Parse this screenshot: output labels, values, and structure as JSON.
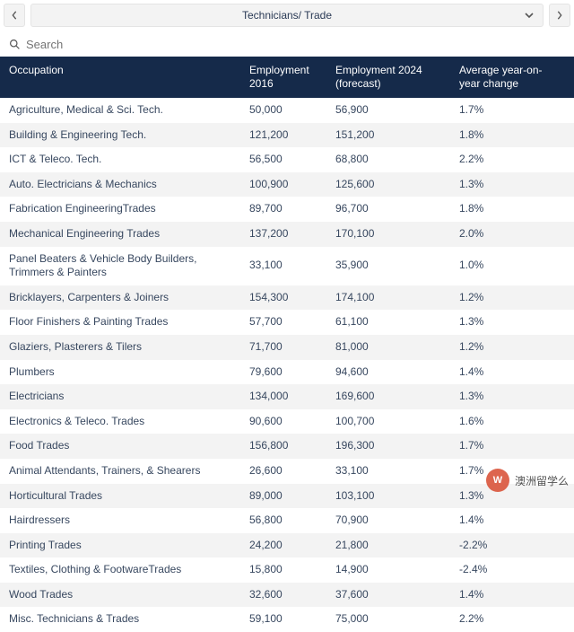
{
  "header": {
    "selector_label": "Technicians/ Trade"
  },
  "search": {
    "placeholder": "Search"
  },
  "table": {
    "columns": [
      "Occupation",
      "Employment 2016",
      "Employment 2024 (forecast)",
      "Average year-on- year change"
    ],
    "rows": [
      [
        "Agriculture, Medical & Sci. Tech.",
        "50,000",
        "56,900",
        "1.7%"
      ],
      [
        "Building & Engineering Tech.",
        "121,200",
        "151,200",
        "1.8%"
      ],
      [
        "ICT & Teleco. Tech.",
        "56,500",
        "68,800",
        "2.2%"
      ],
      [
        "Auto. Electricians & Mechanics",
        "100,900",
        "125,600",
        "1.3%"
      ],
      [
        "Fabrication EngineeringTrades",
        "89,700",
        "96,700",
        "1.8%"
      ],
      [
        "Mechanical Engineering Trades",
        "137,200",
        "170,100",
        "2.0%"
      ],
      [
        "Panel Beaters & Vehicle Body Builders, Trimmers & Painters",
        "33,100",
        "35,900",
        "1.0%"
      ],
      [
        "Bricklayers, Carpenters & Joiners",
        "154,300",
        "174,100",
        "1.2%"
      ],
      [
        "Floor Finishers & Painting Trades",
        "57,700",
        "61,100",
        "1.3%"
      ],
      [
        "Glaziers, Plasterers & Tilers",
        "71,700",
        "81,000",
        "1.2%"
      ],
      [
        "Plumbers",
        "79,600",
        "94,600",
        "1.4%"
      ],
      [
        "Electricians",
        "134,000",
        "169,600",
        "1.3%"
      ],
      [
        "Electronics & Teleco. Trades",
        "90,600",
        "100,700",
        "1.6%"
      ],
      [
        "Food Trades",
        "156,800",
        "196,300",
        "1.7%"
      ],
      [
        "Animal Attendants, Trainers, & Shearers",
        "26,600",
        "33,100",
        "1.7%"
      ],
      [
        "Horticultural Trades",
        "89,000",
        "103,100",
        "1.3%"
      ],
      [
        "Hairdressers",
        "56,800",
        "70,900",
        "1.4%"
      ],
      [
        "Printing Trades",
        "24,200",
        "21,800",
        "-2.2%"
      ],
      [
        "Textiles, Clothing & FootwareTrades",
        "15,800",
        "14,900",
        "-2.4%"
      ],
      [
        "Wood Trades",
        "32,600",
        "37,600",
        "1.4%"
      ],
      [
        "Misc. Technicians & Trades",
        "59,100",
        "75,000",
        "2.2%"
      ]
    ]
  },
  "watermark": {
    "badge": "W",
    "text": "澳洲留学么"
  },
  "colors": {
    "header_bg": "#152a4a",
    "row_alt_bg": "#f3f3f3",
    "text": "#37475f"
  }
}
